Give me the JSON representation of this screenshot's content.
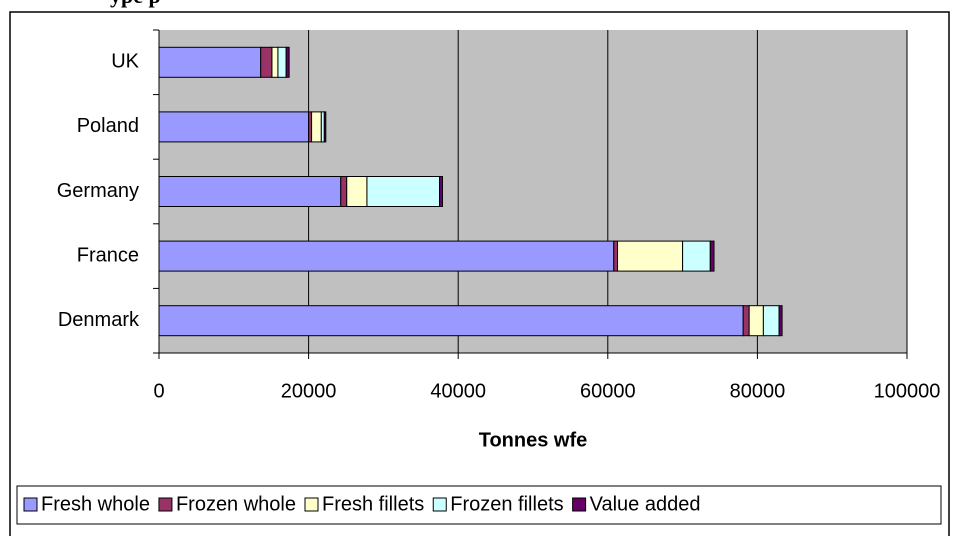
{
  "chart_data": {
    "type": "stacked-bar-horizontal",
    "title": "ype p",
    "x_label": "Tonnes wfe",
    "categories": [
      "UK",
      "Poland",
      "Germany",
      "France",
      "Denmark"
    ],
    "series": [
      {
        "name": "Fresh whole",
        "color": "#9999ff",
        "values": [
          13600,
          20000,
          24300,
          60800,
          78100
        ]
      },
      {
        "name": "Frozen whole",
        "color": "#993366",
        "values": [
          1500,
          400,
          800,
          500,
          800
        ]
      },
      {
        "name": "Fresh fillets",
        "color": "#ffffcc",
        "values": [
          800,
          1300,
          2700,
          8700,
          1900
        ]
      },
      {
        "name": "Frozen fillets",
        "color": "#ccffff",
        "values": [
          1100,
          400,
          9700,
          3700,
          2100
        ]
      },
      {
        "name": "Value added",
        "color": "#660066",
        "values": [
          400,
          200,
          400,
          500,
          400
        ]
      }
    ],
    "xlim": [
      0,
      100000
    ],
    "xticks": [
      0,
      20000,
      40000,
      60000,
      80000,
      100000
    ],
    "grid": true,
    "legend": "bottom"
  }
}
